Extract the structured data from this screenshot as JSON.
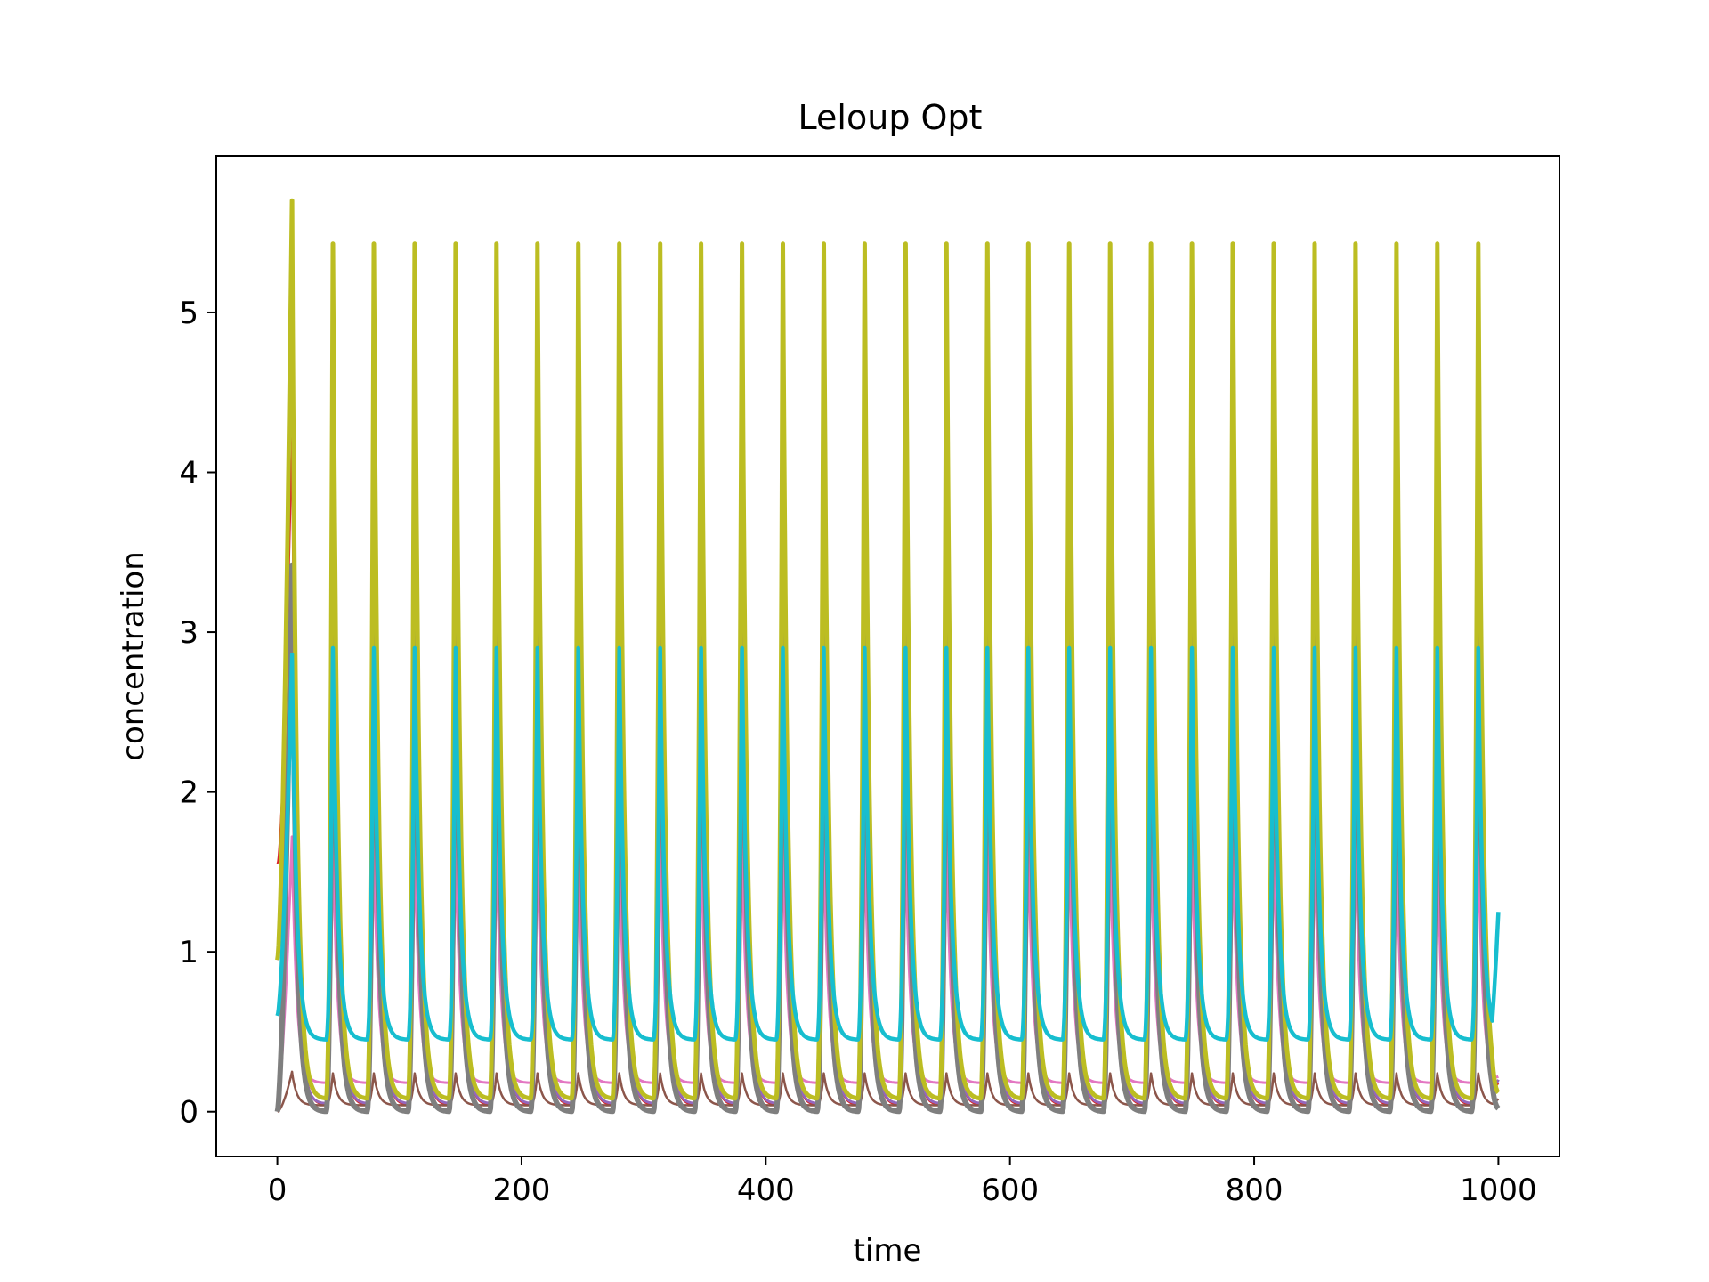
{
  "chart_data": {
    "type": "line",
    "title": "Leloup Opt",
    "xlabel": "time",
    "ylabel": "concentration",
    "xlim": [
      -50,
      1050
    ],
    "ylim": [
      -0.28,
      5.98
    ],
    "xticks": [
      0,
      200,
      400,
      600,
      800,
      1000
    ],
    "yticks": [
      0,
      1,
      2,
      3,
      4,
      5
    ],
    "grid": false,
    "legend": "none",
    "period": 33.5,
    "series": [
      {
        "color": "#d62728",
        "initial": 1.55,
        "first_peak": 4.22,
        "min": 0.04,
        "peak": 4.72,
        "peak_offset": 31.5,
        "end": 0.18,
        "width": 2.0
      },
      {
        "color": "#9467bd",
        "initial": 0.95,
        "first_peak": 3.4,
        "min": 0.05,
        "peak": 4.75,
        "peak_offset": 33.0,
        "end": 0.2,
        "width": 3.0
      },
      {
        "color": "#8c564b",
        "initial": 0.0,
        "first_peak": 0.25,
        "min": 0.04,
        "peak": 0.24,
        "peak_offset": 36.0,
        "end": 0.08,
        "width": 2.5
      },
      {
        "color": "#e377c2",
        "initial": 0.08,
        "first_peak": 1.72,
        "min": 0.18,
        "peak": 1.72,
        "peak_offset": 34.0,
        "end": 0.22,
        "width": 3.0
      },
      {
        "color": "#7f7f7f",
        "initial": 0.0,
        "first_peak": 3.42,
        "min": 0.0,
        "peak": 3.55,
        "peak_offset": 32.0,
        "end": 0.02,
        "width": 6.0
      },
      {
        "color": "#bcbd22",
        "initial": 0.95,
        "first_peak": 5.7,
        "min": 0.08,
        "peak": 5.43,
        "peak_offset": 30.0,
        "end": 0.12,
        "width": 5.0
      },
      {
        "color": "#17becf",
        "initial": 0.6,
        "first_peak": 2.86,
        "min": 0.45,
        "peak": 2.9,
        "peak_offset": 38.0,
        "end": 1.25,
        "width": 4.5
      }
    ]
  }
}
